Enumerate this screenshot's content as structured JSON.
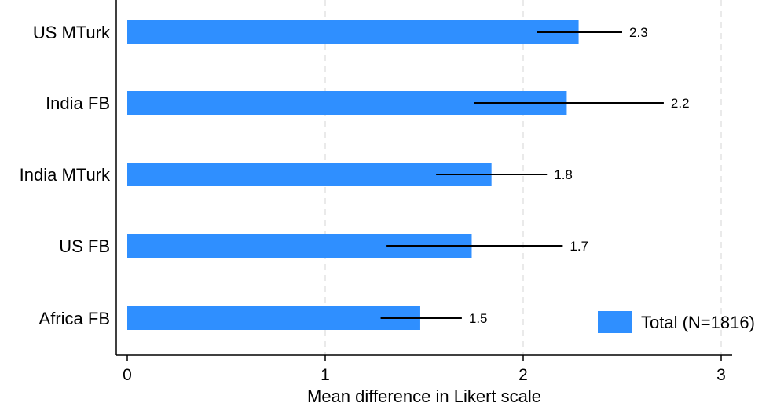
{
  "chart_data": {
    "type": "bar",
    "orientation": "horizontal",
    "title": "",
    "xlabel": "Mean difference in Likert scale",
    "ylabel": "",
    "categories": [
      "US MTurk",
      "India FB",
      "India MTurk",
      "US FB",
      "Africa FB"
    ],
    "series": [
      {
        "name": "Total (N=1816)",
        "values": [
          2.28,
          2.22,
          1.84,
          1.74,
          1.48
        ],
        "ci_low": [
          2.07,
          1.75,
          1.56,
          1.31,
          1.28
        ],
        "ci_high": [
          2.5,
          2.71,
          2.12,
          2.2,
          1.69
        ],
        "data_labels": [
          "2.3",
          "2.2",
          "1.8",
          "1.7",
          "1.5"
        ]
      }
    ],
    "xlim": [
      -0.05,
      3.05
    ],
    "xticks": [
      0,
      1,
      2,
      3
    ],
    "xtick_labels": [
      "0",
      "1",
      "2",
      "3"
    ],
    "grid": "vertical dashed",
    "legend": {
      "placement": "bottom-right",
      "entries": [
        "Total (N=1816)"
      ]
    },
    "colors": {
      "bar": "#2f8fff",
      "errorbar": "#000000",
      "grid": "#e4e4e4"
    }
  }
}
